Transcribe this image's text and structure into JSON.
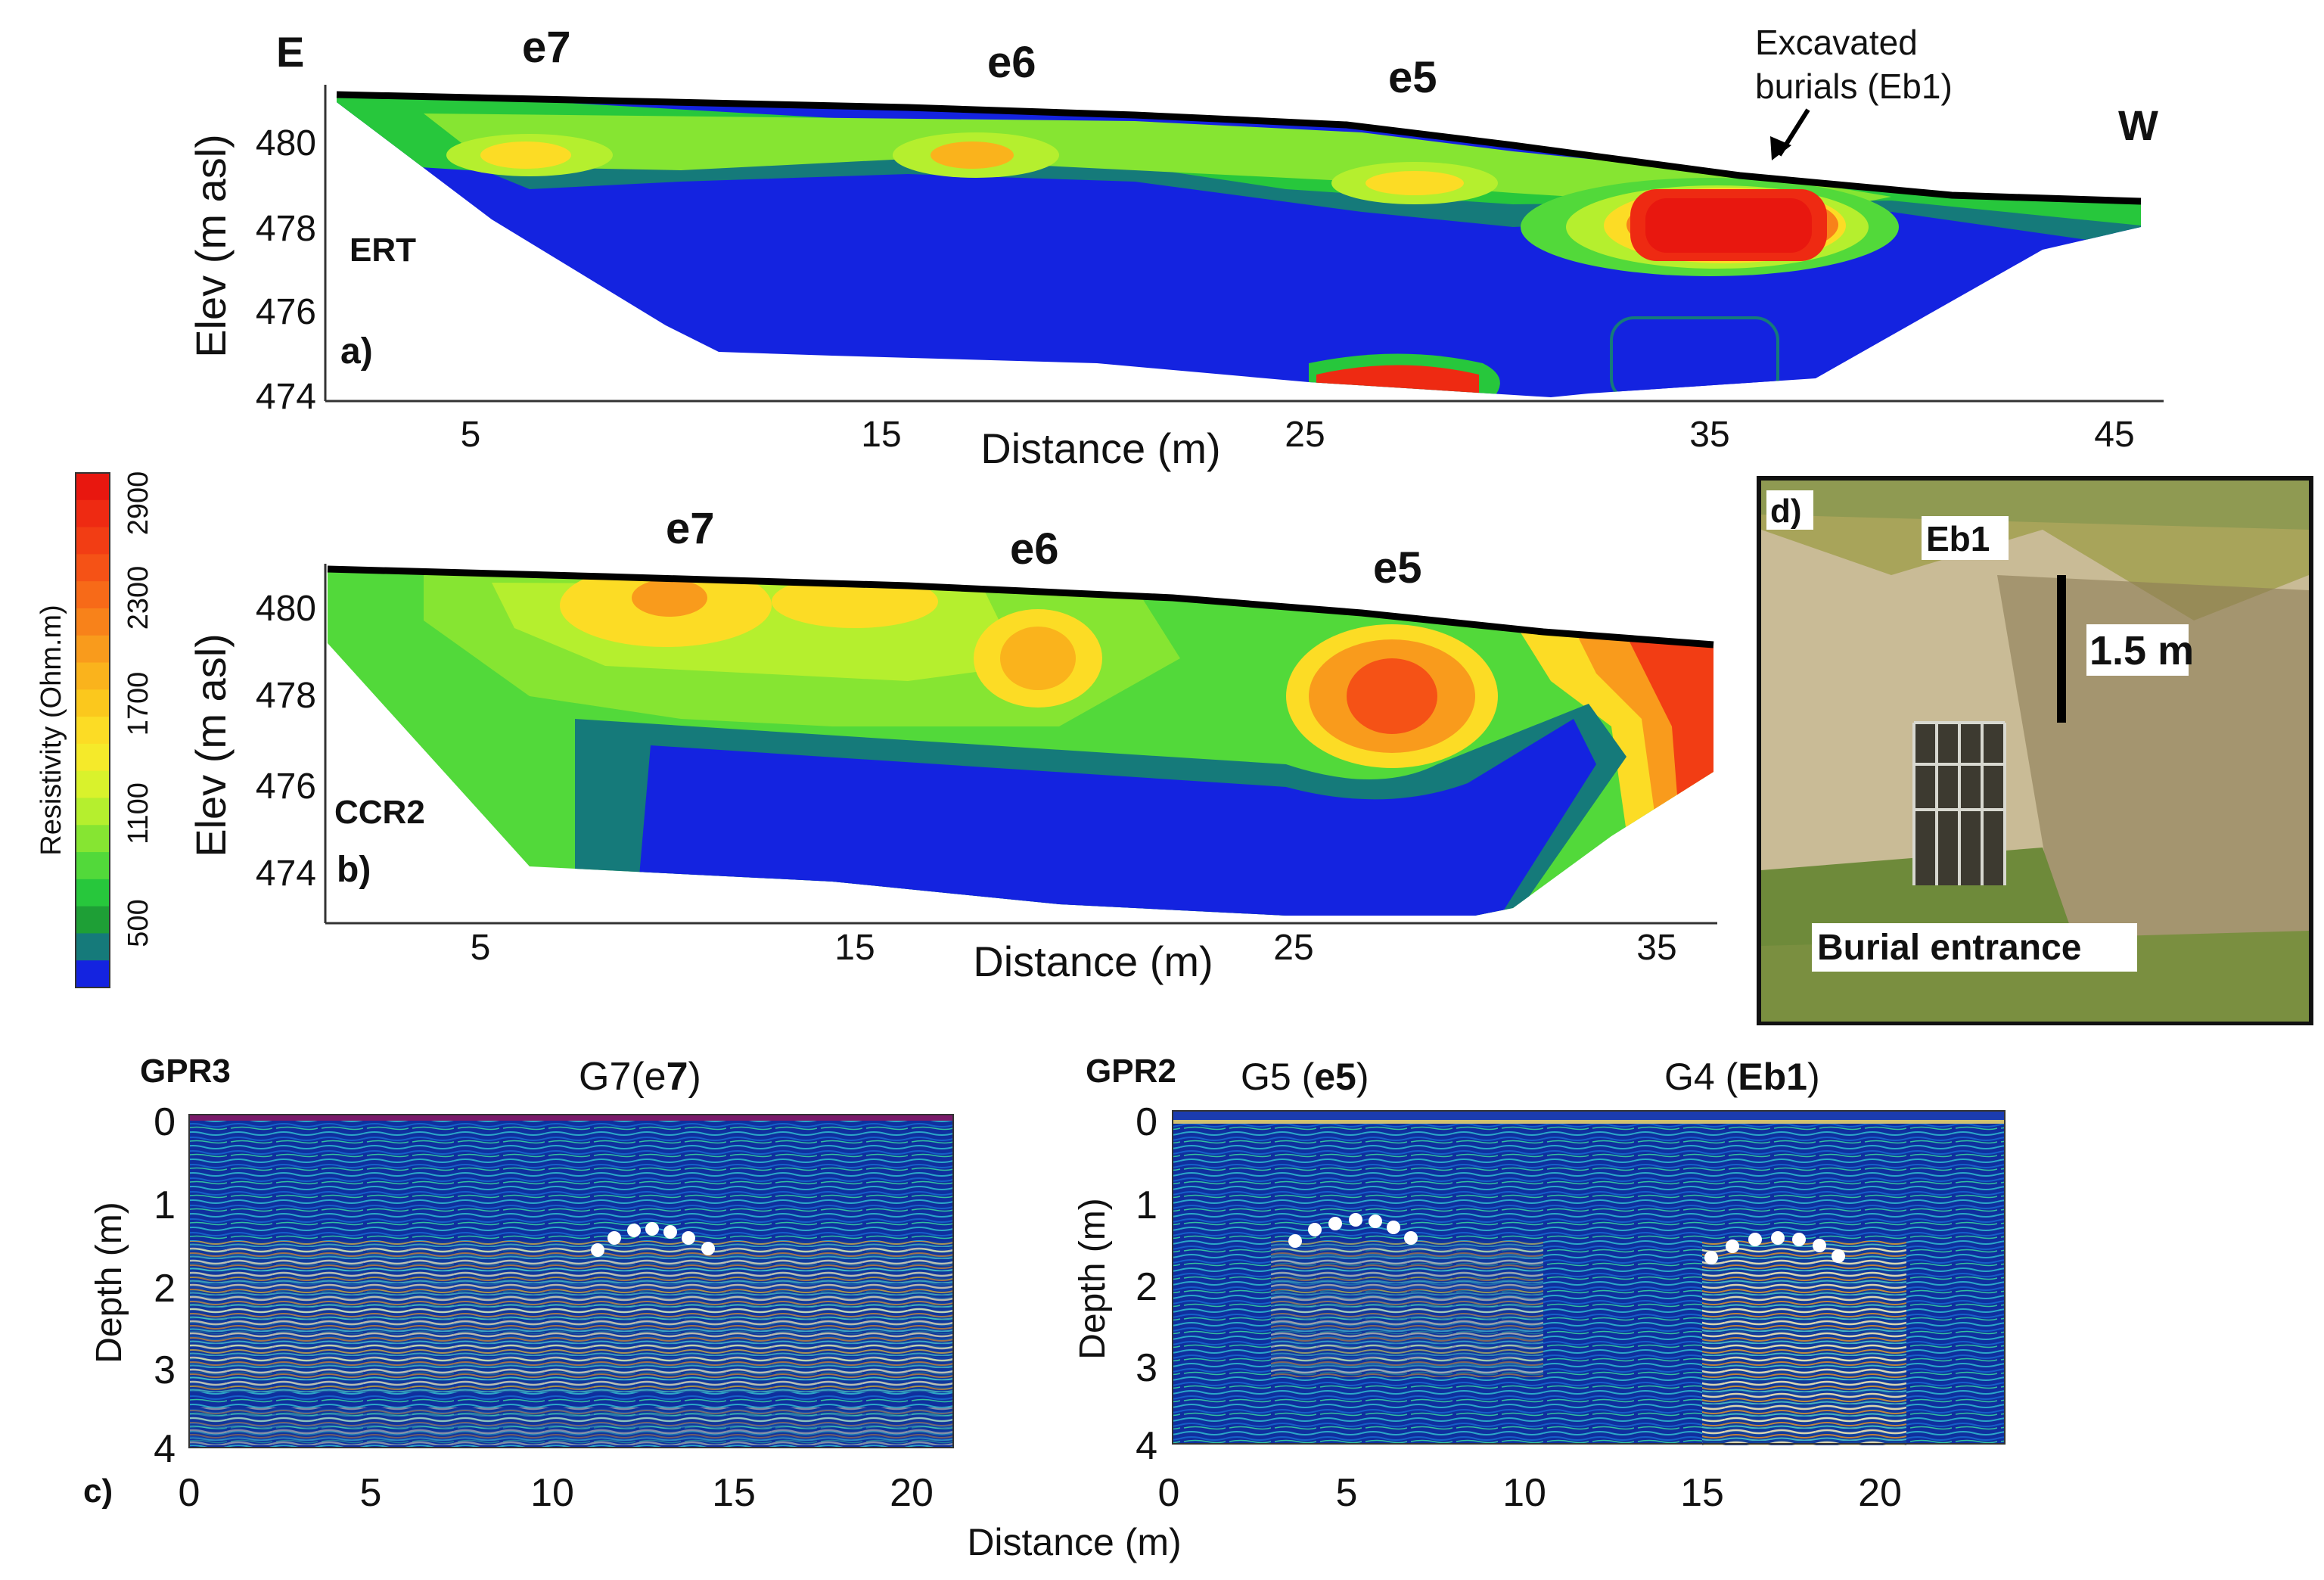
{
  "panel_a": {
    "letter": "a)",
    "method": "ERT",
    "dir_left": "E",
    "dir_right": "W",
    "features": [
      "e7",
      "e6",
      "e5"
    ],
    "annotation": [
      "Excavated",
      "burials (Eb1)"
    ],
    "y_label": "Elev (m asl)",
    "x_label": "Distance (m)",
    "y_ticks": [
      "480",
      "478",
      "476",
      "474"
    ],
    "x_ticks": [
      "5",
      "15",
      "25",
      "35",
      "45"
    ]
  },
  "panel_b": {
    "letter": "b)",
    "method": "CCR2",
    "features": [
      "e7",
      "e6",
      "e5"
    ],
    "y_label": "Elev (m asl)",
    "x_label": "Distance (m)",
    "y_ticks": [
      "480",
      "478",
      "476",
      "474"
    ],
    "x_ticks": [
      "5",
      "15",
      "25",
      "35"
    ]
  },
  "colorbar": {
    "label": "Resistivity (Ohm.m)",
    "ticks": [
      "2900",
      "2300",
      "1700",
      "1100",
      "500"
    ],
    "colors": [
      "#e8170f",
      "#ee2a12",
      "#f23d14",
      "#f55216",
      "#f76a18",
      "#f8821a",
      "#f99b1c",
      "#fab31c",
      "#fbc81d",
      "#fcdc25",
      "#f5ea2a",
      "#d9f22c",
      "#b5ef2e",
      "#86e532",
      "#52d93a",
      "#27c73c",
      "#1e9f36",
      "#157a7a",
      "#1423e0"
    ]
  },
  "panel_c": {
    "letter": "c)",
    "x_label": "Distance (m)",
    "gpr3": {
      "title": "GPR3",
      "anomaly_prefix": "G7(e",
      "anomaly_bold": "7",
      "anomaly_suffix": ")",
      "x_ticks": [
        "0",
        "5",
        "10",
        "15",
        "20"
      ]
    },
    "gpr2": {
      "title": "GPR2",
      "anomaly1_prefix": "G5 (",
      "anomaly1_bold": "e5",
      "anomaly1_suffix": ")",
      "anomaly2_prefix": "G4 (",
      "anomaly2_bold": "Eb1",
      "anomaly2_suffix": ")",
      "x_ticks": [
        "0",
        "5",
        "10",
        "15",
        "20"
      ]
    },
    "y_label": "Depth (m)",
    "y_ticks": [
      "0",
      "1",
      "2",
      "3",
      "4"
    ]
  },
  "panel_d": {
    "letter": "d)",
    "label_top": "Eb1",
    "scale": "1.5 m",
    "caption": "Burial entrance"
  }
}
